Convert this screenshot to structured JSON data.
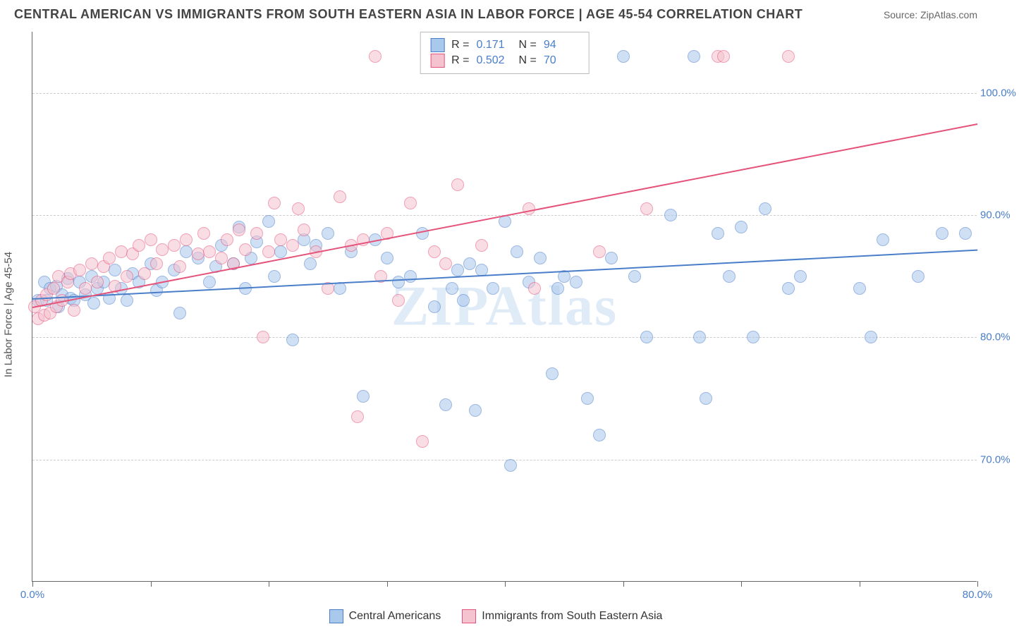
{
  "title": "CENTRAL AMERICAN VS IMMIGRANTS FROM SOUTH EASTERN ASIA IN LABOR FORCE | AGE 45-54 CORRELATION CHART",
  "source": "Source: ZipAtlas.com",
  "watermark": "ZIPAtlas",
  "y_axis_label": "In Labor Force | Age 45-54",
  "chart": {
    "type": "scatter",
    "xlim": [
      0,
      80
    ],
    "ylim": [
      60,
      105
    ],
    "xticks": [
      0,
      10,
      20,
      30,
      40,
      50,
      60,
      70,
      80
    ],
    "xtick_labels": {
      "0": "0.0%",
      "80": "80.0%"
    },
    "yticks": [
      70,
      80,
      90,
      100
    ],
    "ytick_labels": {
      "70": "70.0%",
      "80": "80.0%",
      "90": "90.0%",
      "100": "100.0%"
    },
    "background_color": "#ffffff",
    "grid_color": "#cccccc",
    "axis_color": "#666666",
    "marker_radius": 9
  },
  "series": [
    {
      "name": "Central Americans",
      "color_fill": "#a8c8ec",
      "color_stroke": "#4a7ec9",
      "R": "0.171",
      "N": "94",
      "trend": {
        "x1": 0,
        "y1": 83.2,
        "x2": 80,
        "y2": 87.2
      },
      "points": [
        [
          0.5,
          83
        ],
        [
          1,
          84.5
        ],
        [
          1.2,
          83
        ],
        [
          1.5,
          84
        ],
        [
          2,
          84.2
        ],
        [
          2.2,
          82.5
        ],
        [
          2.5,
          83.5
        ],
        [
          3,
          84.8
        ],
        [
          3.2,
          83.2
        ],
        [
          3.5,
          83
        ],
        [
          4,
          84.5
        ],
        [
          4.5,
          83.5
        ],
        [
          5,
          85
        ],
        [
          5.2,
          82.8
        ],
        [
          5.5,
          84
        ],
        [
          6,
          84.5
        ],
        [
          6.5,
          83.2
        ],
        [
          7,
          85.5
        ],
        [
          7.5,
          84
        ],
        [
          8,
          83
        ],
        [
          8.5,
          85.2
        ],
        [
          9,
          84.5
        ],
        [
          10,
          86
        ],
        [
          10.5,
          83.8
        ],
        [
          11,
          84.5
        ],
        [
          12,
          85.5
        ],
        [
          12.5,
          82
        ],
        [
          13,
          87
        ],
        [
          14,
          86.5
        ],
        [
          15,
          84.5
        ],
        [
          15.5,
          85.8
        ],
        [
          16,
          87.5
        ],
        [
          17,
          86
        ],
        [
          17.5,
          89
        ],
        [
          18,
          84
        ],
        [
          18.5,
          86.5
        ],
        [
          19,
          87.8
        ],
        [
          20,
          89.5
        ],
        [
          20.5,
          85
        ],
        [
          21,
          87
        ],
        [
          22,
          79.8
        ],
        [
          23,
          88
        ],
        [
          23.5,
          86
        ],
        [
          24,
          87.5
        ],
        [
          25,
          88.5
        ],
        [
          26,
          84
        ],
        [
          27,
          87
        ],
        [
          28,
          75.2
        ],
        [
          29,
          88
        ],
        [
          30,
          86.5
        ],
        [
          31,
          84.5
        ],
        [
          32,
          85
        ],
        [
          33,
          88.5
        ],
        [
          34,
          82.5
        ],
        [
          35,
          74.5
        ],
        [
          35.5,
          84
        ],
        [
          36,
          85.5
        ],
        [
          36.5,
          83
        ],
        [
          37,
          86
        ],
        [
          37.5,
          74
        ],
        [
          38,
          85.5
        ],
        [
          39,
          84
        ],
        [
          40,
          89.5
        ],
        [
          40.5,
          69.5
        ],
        [
          41,
          87
        ],
        [
          42,
          84.5
        ],
        [
          43,
          86.5
        ],
        [
          44,
          77
        ],
        [
          44.5,
          84
        ],
        [
          45,
          85
        ],
        [
          46,
          84.5
        ],
        [
          47,
          75
        ],
        [
          48,
          72
        ],
        [
          49,
          86.5
        ],
        [
          50,
          103
        ],
        [
          51,
          85
        ],
        [
          52,
          80
        ],
        [
          54,
          90
        ],
        [
          56,
          103
        ],
        [
          56.5,
          80
        ],
        [
          57,
          75
        ],
        [
          58,
          88.5
        ],
        [
          59,
          85
        ],
        [
          60,
          89
        ],
        [
          61,
          80
        ],
        [
          62,
          90.5
        ],
        [
          64,
          84
        ],
        [
          65,
          85
        ],
        [
          70,
          84
        ],
        [
          71,
          80
        ],
        [
          72,
          88
        ],
        [
          75,
          85
        ],
        [
          77,
          88.5
        ],
        [
          79,
          88.5
        ]
      ]
    },
    {
      "name": "Immigrants from South Eastern Asia",
      "color_fill": "#f5c2cf",
      "color_stroke": "#e6537a",
      "R": "0.502",
      "N": "70",
      "trend": {
        "x1": 0,
        "y1": 82.5,
        "x2": 80,
        "y2": 97.5
      },
      "points": [
        [
          0.2,
          82.5
        ],
        [
          0.5,
          81.5
        ],
        [
          0.8,
          83
        ],
        [
          1,
          81.8
        ],
        [
          1.2,
          83.5
        ],
        [
          1.5,
          82
        ],
        [
          1.8,
          84
        ],
        [
          2,
          82.5
        ],
        [
          2.2,
          85
        ],
        [
          2.5,
          83
        ],
        [
          3,
          84.5
        ],
        [
          3.2,
          85.2
        ],
        [
          3.5,
          82.2
        ],
        [
          4,
          85.5
        ],
        [
          4.5,
          84
        ],
        [
          5,
          86
        ],
        [
          5.5,
          84.5
        ],
        [
          6,
          85.8
        ],
        [
          6.5,
          86.5
        ],
        [
          7,
          84.2
        ],
        [
          7.5,
          87
        ],
        [
          8,
          85
        ],
        [
          8.5,
          86.8
        ],
        [
          9,
          87.5
        ],
        [
          9.5,
          85.2
        ],
        [
          10,
          88
        ],
        [
          10.5,
          86
        ],
        [
          11,
          87.2
        ],
        [
          12,
          87.5
        ],
        [
          12.5,
          85.8
        ],
        [
          13,
          88
        ],
        [
          14,
          86.8
        ],
        [
          14.5,
          88.5
        ],
        [
          15,
          87
        ],
        [
          16,
          86.5
        ],
        [
          16.5,
          88
        ],
        [
          17,
          86
        ],
        [
          17.5,
          88.8
        ],
        [
          18,
          87.2
        ],
        [
          19,
          88.5
        ],
        [
          19.5,
          80
        ],
        [
          20,
          87
        ],
        [
          20.5,
          91
        ],
        [
          21,
          88
        ],
        [
          22,
          87.5
        ],
        [
          22.5,
          90.5
        ],
        [
          23,
          88.8
        ],
        [
          24,
          87
        ],
        [
          25,
          84
        ],
        [
          26,
          91.5
        ],
        [
          27,
          87.5
        ],
        [
          27.5,
          73.5
        ],
        [
          28,
          88
        ],
        [
          29,
          103
        ],
        [
          29.5,
          85
        ],
        [
          30,
          88.5
        ],
        [
          31,
          83
        ],
        [
          32,
          91
        ],
        [
          33,
          71.5
        ],
        [
          34,
          87
        ],
        [
          35,
          86
        ],
        [
          36,
          92.5
        ],
        [
          38,
          87.5
        ],
        [
          42,
          90.5
        ],
        [
          42.5,
          84
        ],
        [
          48,
          87
        ],
        [
          52,
          90.5
        ],
        [
          58,
          103
        ],
        [
          58.5,
          103
        ],
        [
          64,
          103
        ]
      ]
    }
  ],
  "stats_box": {
    "r_label": "R  =",
    "n_label": "N  ="
  },
  "legend": {
    "item1": "Central Americans",
    "item2": "Immigrants from South Eastern Asia"
  }
}
